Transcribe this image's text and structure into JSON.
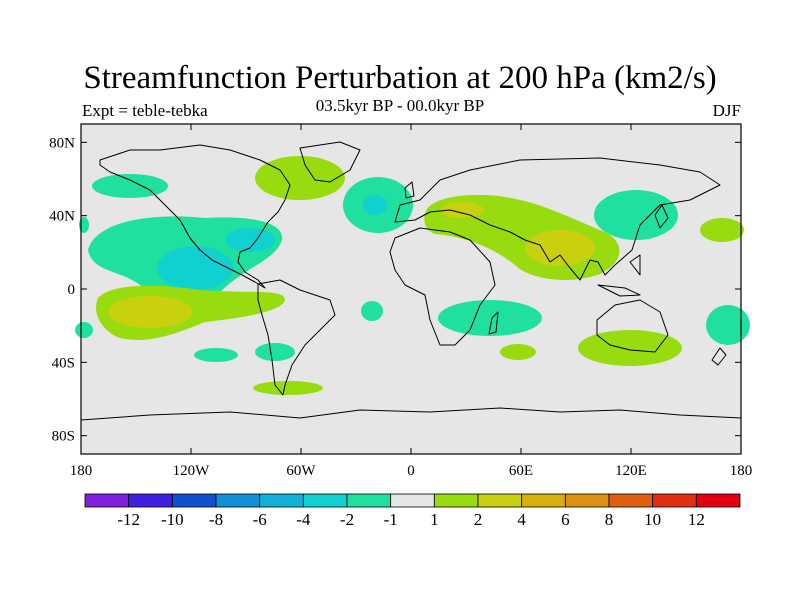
{
  "title": "Streamfunction Perturbation at 200 hPa (km2/s)",
  "left_label": "Expt = teble-tebka",
  "center_label": "03.5kyr BP - 00.0kyr BP",
  "right_label": "DJF",
  "map": {
    "projection": "cylindrical equidistant",
    "lon_range": [
      -180,
      180
    ],
    "lat_range": [
      -90,
      90
    ],
    "background_color": "#e6e6e6",
    "lat_ticks": [
      {
        "value": 80,
        "label": "80N"
      },
      {
        "value": 40,
        "label": "40N"
      },
      {
        "value": 0,
        "label": "0"
      },
      {
        "value": -40,
        "label": "40S"
      },
      {
        "value": -80,
        "label": "80S"
      }
    ],
    "lon_ticks": [
      {
        "value": -180,
        "label": "180"
      },
      {
        "value": -120,
        "label": "120W"
      },
      {
        "value": -60,
        "label": "60W"
      },
      {
        "value": 0,
        "label": "0"
      },
      {
        "value": 60,
        "label": "60E"
      },
      {
        "value": 120,
        "label": "120E"
      },
      {
        "value": 180,
        "label": "180"
      }
    ]
  },
  "colorbar": {
    "colors": [
      "#7f20e0",
      "#4020e0",
      "#1050d0",
      "#1090d8",
      "#10b0d8",
      "#10d0d0",
      "#20e0a0",
      "#e6e6e6",
      "#98dc10",
      "#c8d010",
      "#d8b010",
      "#e09010",
      "#e06010",
      "#e03010",
      "#e00010"
    ],
    "labels": [
      "-12",
      "-10",
      "-8",
      "-6",
      "-4",
      "-2",
      "-1",
      "1",
      "2",
      "4",
      "6",
      "8",
      "10",
      "12"
    ]
  }
}
